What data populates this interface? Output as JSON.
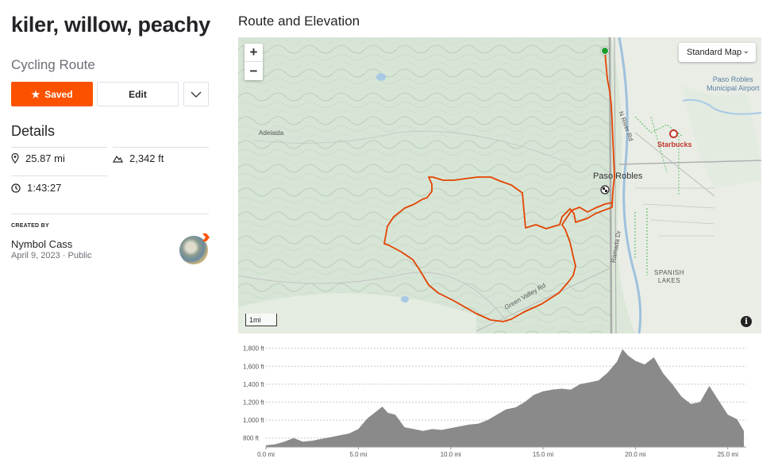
{
  "route": {
    "title": "kiler, willow, peachy",
    "type": "Cycling Route"
  },
  "actions": {
    "saved_label": "Saved",
    "edit_label": "Edit"
  },
  "details": {
    "heading": "Details",
    "distance": "25.87 mi",
    "elevation_gain": "2,342 ft",
    "moving_time": "1:43:27"
  },
  "creator": {
    "label": "CREATED BY",
    "name": "Nymbol Cass",
    "date": "April 9, 2023",
    "visibility": "Public"
  },
  "map": {
    "section_title": "Route and Elevation",
    "style_selector": "Standard Map",
    "scale_label": "1mi",
    "labels": {
      "paso_robles": "Paso Robles",
      "starbucks": "Starbucks",
      "airport": "Paso Robles\nMunicipal Airport",
      "adelaida": "Adelaida",
      "spanish_lakes": "SPANISH\nLAKES",
      "green_valley": "Green Valley Rd",
      "n_river": "N River Rd",
      "ramada": "Ramada Dr"
    },
    "route_color": "#e34402",
    "start_color": "#1a9b2a"
  },
  "elevation": {
    "type": "area",
    "y_tick_labels": [
      "1,800 ft",
      "1,600 ft",
      "1,400 ft",
      "1,200 ft",
      "1,000 ft",
      "800 ft"
    ],
    "x_tick_labels": [
      "0.0 mi",
      "5.0 mi",
      "10.0 mi",
      "15.0 mi",
      "20.0 mi",
      "25.0 mi"
    ],
    "x": [
      0,
      0.5,
      1,
      1.5,
      2,
      2.5,
      3,
      3.5,
      4,
      4.5,
      5,
      5.5,
      6,
      6.3,
      6.6,
      7,
      7.5,
      8,
      8.5,
      9,
      9.5,
      10,
      10.5,
      11,
      11.5,
      12,
      12.5,
      13,
      13.5,
      14,
      14.5,
      15,
      15.5,
      16,
      16.5,
      17,
      17.5,
      18,
      18.5,
      19,
      19.3,
      19.6,
      20,
      20.5,
      21,
      21.5,
      22,
      22.5,
      23,
      23.5,
      24,
      24.5,
      25,
      25.5,
      25.87
    ],
    "y": [
      720,
      730,
      760,
      800,
      760,
      770,
      790,
      810,
      830,
      850,
      900,
      1020,
      1100,
      1150,
      1080,
      1060,
      920,
      900,
      880,
      900,
      890,
      910,
      930,
      950,
      960,
      1000,
      1060,
      1120,
      1140,
      1200,
      1280,
      1320,
      1340,
      1350,
      1340,
      1400,
      1420,
      1440,
      1530,
      1650,
      1790,
      1720,
      1660,
      1620,
      1700,
      1520,
      1400,
      1260,
      1180,
      1200,
      1380,
      1220,
      1060,
      1010,
      880
    ],
    "xlim": [
      0,
      26
    ],
    "ylim": [
      700,
      1850
    ],
    "fill_color": "#8a8a8a"
  }
}
